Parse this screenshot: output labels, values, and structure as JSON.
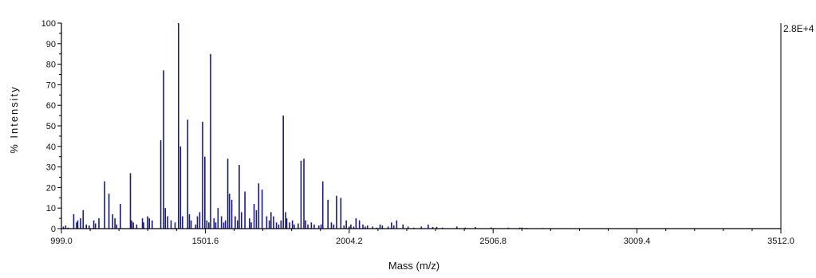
{
  "chart_data": {
    "type": "bar",
    "xlabel": "Mass (m/z)",
    "ylabel": "% Intensity",
    "scale_label": "2.8E+4",
    "xlim": [
      999.0,
      3512.0
    ],
    "ylim": [
      0,
      100
    ],
    "x_ticks": [
      "999.0",
      "1501.6",
      "2004.2",
      "2506.8",
      "3009.4",
      "3512.0"
    ],
    "y_ticks": [
      "0",
      "10",
      "20",
      "30",
      "40",
      "50",
      "60",
      "70",
      "80",
      "90",
      "100"
    ],
    "grid": false,
    "colors": {
      "series": "#1a1a7a",
      "axis": "#000000"
    },
    "series": [
      {
        "x": [
          1006,
          1014,
          1022,
          1042,
          1052,
          1056,
          1066,
          1075,
          1086,
          1096,
          1112,
          1118,
          1130,
          1150,
          1165,
          1178,
          1186,
          1192,
          1205,
          1240,
          1244,
          1250,
          1262,
          1282,
          1286,
          1300,
          1306,
          1316,
          1346,
          1356,
          1362,
          1370,
          1382,
          1396,
          1408,
          1415,
          1422,
          1440,
          1446,
          1452,
          1468,
          1474,
          1482,
          1492,
          1500,
          1507,
          1514,
          1520,
          1532,
          1538,
          1546,
          1558,
          1566,
          1572,
          1580,
          1586,
          1594,
          1606,
          1614,
          1620,
          1628,
          1640,
          1656,
          1662,
          1672,
          1680,
          1688,
          1700,
          1716,
          1725,
          1731,
          1740,
          1750,
          1758,
          1766,
          1774,
          1782,
          1786,
          1796,
          1806,
          1812,
          1826,
          1836,
          1846,
          1852,
          1860,
          1872,
          1882,
          1898,
          1906,
          1912,
          1930,
          1942,
          1950,
          1960,
          1975,
          1986,
          1994,
          2004,
          2010,
          2020,
          2028,
          2040,
          2052,
          2060,
          2068,
          2086,
          2100,
          2112,
          2120,
          2140,
          2152,
          2160,
          2170,
          2192,
          2210,
          2230,
          2256,
          2280,
          2296,
          2310,
          2330,
          2380,
          2410,
          2445,
          2500,
          2560,
          2600,
          2608,
          2620,
          2626,
          2680,
          2690,
          2700,
          2710,
          2900,
          3050,
          3250,
          3400
        ],
        "values": [
          1,
          1.5,
          0.5,
          7,
          3,
          4,
          5,
          9,
          2,
          1.5,
          4,
          2.5,
          5,
          23,
          17,
          7,
          5,
          2,
          12,
          27,
          4,
          3,
          2,
          5,
          3,
          6,
          5,
          4,
          43,
          77,
          10,
          6,
          4,
          3,
          100,
          40,
          6,
          53,
          7,
          4,
          2,
          6,
          8,
          52,
          35,
          4,
          3,
          85,
          5,
          3,
          10,
          6,
          3,
          4,
          34,
          17,
          14,
          6,
          4,
          31,
          8,
          18,
          5,
          3,
          12,
          9,
          22,
          19,
          6,
          4,
          8,
          6,
          3,
          2,
          4,
          55,
          8,
          5,
          3,
          4,
          2,
          2.5,
          33,
          34,
          4,
          2,
          3,
          2,
          1.5,
          2,
          23,
          14,
          3,
          2,
          16,
          15,
          1.5,
          4,
          1,
          2,
          1,
          5,
          4,
          2,
          1,
          1.5,
          1,
          0.5,
          2,
          1.5,
          1,
          3,
          1.5,
          4,
          2,
          1,
          0.5,
          1,
          2,
          0.8,
          0.8,
          0.5,
          1,
          0.5,
          0.8,
          0.6,
          0.5,
          0.5,
          0.5,
          0.3,
          0.3,
          0.3,
          0.2,
          0.2,
          0.2,
          0.2,
          0.2,
          0.2,
          0.2
        ]
      }
    ]
  }
}
